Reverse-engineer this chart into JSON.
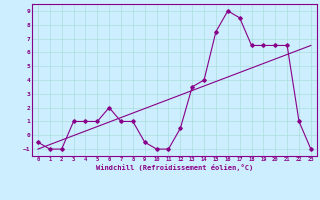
{
  "title": "",
  "xlabel": "Windchill (Refroidissement éolien,°C)",
  "bg_color": "#cceeff",
  "grid_color": "#aadddd",
  "line_color": "#880088",
  "xlim": [
    -0.5,
    23.5
  ],
  "ylim": [
    -1.5,
    9.5
  ],
  "x_ticks": [
    0,
    1,
    2,
    3,
    4,
    5,
    6,
    7,
    8,
    9,
    10,
    11,
    12,
    13,
    14,
    15,
    16,
    17,
    18,
    19,
    20,
    21,
    22,
    23
  ],
  "y_ticks": [
    -1,
    0,
    1,
    2,
    3,
    4,
    5,
    6,
    7,
    8,
    9
  ],
  "jagged_x": [
    0,
    1,
    2,
    3,
    4,
    5,
    6,
    7,
    8,
    9,
    10,
    11,
    12,
    13,
    14,
    15,
    16,
    17,
    18,
    19,
    20,
    21,
    22,
    23
  ],
  "jagged_y": [
    -0.5,
    -1,
    -1,
    1,
    1,
    1,
    2,
    1,
    1,
    -0.5,
    -1,
    -1,
    0.5,
    3.5,
    4,
    7.5,
    9,
    8.5,
    6.5,
    6.5,
    6.5,
    6.5,
    1,
    -1
  ],
  "trend_x": [
    0,
    23
  ],
  "trend_y": [
    -1,
    6.5
  ],
  "fig_width": 3.2,
  "fig_height": 2.0,
  "dpi": 100
}
